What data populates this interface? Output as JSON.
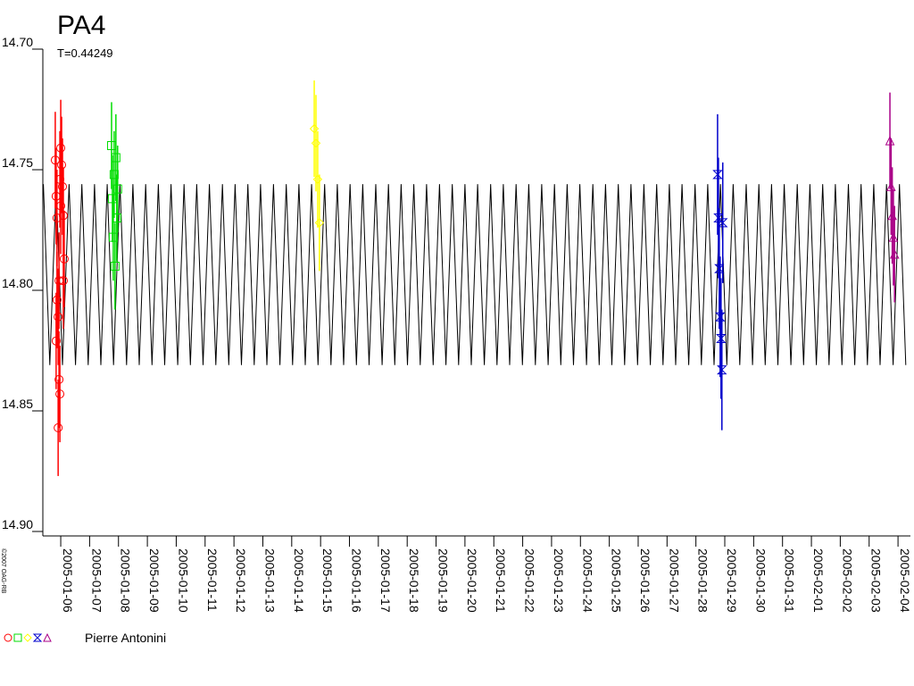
{
  "chart_data": {
    "type": "scatter",
    "title": "PA4",
    "subtitle": "T=0.44249",
    "credit": "©2007 OAG-RB",
    "legend_label": "Pierre Antonini",
    "xlim": [
      5.38,
      35.43
    ],
    "ylim": [
      14.7,
      14.9
    ],
    "y_inverted": true,
    "yticks": [
      {
        "value": 14.7,
        "label": "14.70"
      },
      14.75,
      {
        "value": 14.8,
        "label": "14.80"
      },
      14.85,
      {
        "value": 14.9,
        "label": "14.90"
      }
    ],
    "xticks": [
      {
        "value": 6,
        "label": "2005-01-06"
      },
      {
        "value": 7,
        "label": "2005-01-07"
      },
      {
        "value": 8,
        "label": "2005-01-08"
      },
      {
        "value": 9,
        "label": "2005-01-09"
      },
      {
        "value": 10,
        "label": "2005-01-10"
      },
      {
        "value": 11,
        "label": "2005-01-11"
      },
      {
        "value": 12,
        "label": "2005-01-12"
      },
      {
        "value": 13,
        "label": "2005-01-13"
      },
      {
        "value": 14,
        "label": "2005-01-14"
      },
      {
        "value": 15,
        "label": "2005-01-15"
      },
      {
        "value": 16,
        "label": "2005-01-16"
      },
      {
        "value": 17,
        "label": "2005-01-17"
      },
      {
        "value": 18,
        "label": "2005-01-18"
      },
      {
        "value": 19,
        "label": "2005-01-19"
      },
      {
        "value": 20,
        "label": "2005-01-20"
      },
      {
        "value": 21,
        "label": "2005-01-21"
      },
      {
        "value": 22,
        "label": "2005-01-22"
      },
      {
        "value": 23,
        "label": "2005-01-23"
      },
      {
        "value": 24,
        "label": "2005-01-24"
      },
      {
        "value": 25,
        "label": "2005-01-25"
      },
      {
        "value": 26,
        "label": "2005-01-26"
      },
      {
        "value": 27,
        "label": "2005-01-27"
      },
      {
        "value": 28,
        "label": "2005-01-28"
      },
      {
        "value": 29,
        "label": "2005-01-29"
      },
      {
        "value": 30,
        "label": "2005-01-30"
      },
      {
        "value": 31,
        "label": "2005-01-31"
      },
      {
        "value": 32,
        "label": "2005-02-01"
      },
      {
        "value": 33,
        "label": "2005-02-02"
      },
      {
        "value": 34,
        "label": "2005-02-03"
      },
      {
        "value": 35,
        "label": "2005-02-04"
      }
    ],
    "model": {
      "color": "#000000",
      "x": [
        5.4,
        5.62,
        5.84,
        6.06,
        6.29,
        6.51,
        6.73,
        6.95,
        7.17,
        7.39,
        7.61,
        7.83,
        8.05,
        8.28,
        8.5,
        8.72,
        8.94,
        9.16,
        9.38,
        9.6,
        9.82,
        10.05,
        10.27,
        10.49,
        10.71,
        10.93,
        11.15,
        11.37,
        11.6,
        11.82,
        12.04,
        12.26,
        12.48,
        12.7,
        12.92,
        13.14,
        13.37,
        13.59,
        13.81,
        14.03,
        14.25,
        14.47,
        14.69,
        14.91,
        15.14,
        15.36,
        15.58,
        15.8,
        16.02,
        16.24,
        16.46,
        16.68,
        16.91,
        17.13,
        17.35,
        17.57,
        17.79,
        18.01,
        18.23,
        18.45,
        18.67,
        18.9,
        19.12,
        19.34,
        19.56,
        19.78,
        20.0,
        20.22,
        20.44,
        20.67,
        20.89,
        21.11,
        21.33,
        21.55,
        21.77,
        21.99,
        22.21,
        22.44,
        22.66,
        22.88,
        23.1,
        23.32,
        23.54,
        23.76,
        23.98,
        24.21,
        24.43,
        24.65,
        24.87,
        25.09,
        25.31,
        25.53,
        25.75,
        25.98,
        26.2,
        26.42,
        26.64,
        26.86,
        27.08,
        27.3,
        27.52,
        27.75,
        27.97,
        28.19,
        28.41,
        28.63,
        28.85,
        29.07,
        29.29,
        29.52,
        29.74,
        29.96,
        30.18,
        30.4,
        30.62,
        30.84,
        31.06,
        31.29,
        31.51,
        31.73,
        31.95,
        32.17,
        32.39,
        32.61,
        32.83,
        33.06,
        33.28,
        33.5,
        33.72,
        33.94,
        34.16,
        34.38,
        34.6,
        34.83,
        35.05,
        35.27
      ],
      "values": [
        14.756,
        14.831,
        14.756,
        14.831,
        14.756,
        14.831,
        14.756,
        14.831,
        14.756,
        14.831,
        14.756,
        14.831,
        14.756,
        14.831,
        14.756,
        14.831,
        14.756,
        14.831,
        14.756,
        14.831,
        14.756,
        14.831,
        14.756,
        14.831,
        14.756,
        14.831,
        14.756,
        14.831,
        14.756,
        14.831,
        14.756,
        14.831,
        14.756,
        14.831,
        14.756,
        14.831,
        14.756,
        14.831,
        14.756,
        14.831,
        14.756,
        14.831,
        14.756,
        14.831,
        14.756,
        14.831,
        14.756,
        14.831,
        14.756,
        14.831,
        14.756,
        14.831,
        14.756,
        14.831,
        14.756,
        14.831,
        14.756,
        14.831,
        14.756,
        14.831,
        14.756,
        14.831,
        14.756,
        14.831,
        14.756,
        14.831,
        14.756,
        14.831,
        14.756,
        14.831,
        14.756,
        14.831,
        14.756,
        14.831,
        14.756,
        14.831,
        14.756,
        14.831,
        14.756,
        14.831,
        14.756,
        14.831,
        14.756,
        14.831,
        14.756,
        14.831,
        14.756,
        14.831,
        14.756,
        14.831,
        14.756,
        14.831,
        14.756,
        14.831,
        14.756,
        14.831,
        14.756,
        14.831,
        14.756,
        14.831,
        14.756,
        14.831,
        14.756,
        14.831,
        14.756,
        14.831,
        14.756,
        14.831,
        14.756,
        14.831,
        14.756,
        14.831,
        14.756,
        14.831,
        14.756,
        14.831,
        14.756,
        14.831,
        14.756,
        14.831,
        14.756,
        14.831,
        14.756,
        14.831,
        14.756,
        14.831,
        14.756,
        14.831,
        14.756,
        14.831,
        14.756,
        14.831,
        14.756,
        14.831,
        14.756,
        14.831
      ]
    },
    "series": [
      {
        "color": "#ff0000",
        "marker": "circle",
        "x": [
          5.81,
          5.84,
          5.84,
          5.87,
          5.87,
          5.91,
          5.91,
          5.94,
          5.94,
          5.97,
          5.97,
          6.0,
          6.0,
          6.03,
          6.06,
          6.09,
          6.09,
          6.12
        ],
        "values": [
          14.746,
          14.761,
          14.821,
          14.77,
          14.804,
          14.811,
          14.857,
          14.837,
          14.796,
          14.843,
          14.754,
          14.765,
          14.741,
          14.748,
          14.757,
          14.769,
          14.796,
          14.787
        ],
        "errors": [
          0.02,
          0.02,
          0.02,
          0.02,
          0.02,
          0.02,
          0.02,
          0.02,
          0.02,
          0.02,
          0.02,
          0.02,
          0.02,
          0.02,
          0.02,
          0.02,
          0.02,
          0.02
        ]
      },
      {
        "color": "#00dd00",
        "marker": "square",
        "x": [
          7.76,
          7.79,
          7.82,
          7.85,
          7.88,
          7.91,
          7.94,
          7.97
        ],
        "values": [
          14.74,
          14.762,
          14.778,
          14.752,
          14.79,
          14.745,
          14.77,
          14.758
        ],
        "errors": [
          0.018,
          0.018,
          0.018,
          0.018,
          0.018,
          0.018,
          0.018,
          0.018
        ]
      },
      {
        "color": "#ffff00",
        "marker": "diamond",
        "x": [
          14.78,
          14.84,
          14.9,
          14.96
        ],
        "values": [
          14.733,
          14.739,
          14.754,
          14.772
        ],
        "errors": [
          0.02,
          0.02,
          0.02,
          0.02
        ]
      },
      {
        "color": "#0000cc",
        "marker": "hourglass",
        "x": [
          28.75,
          28.78,
          28.81,
          28.84,
          28.87,
          28.9,
          28.93
        ],
        "values": [
          14.752,
          14.77,
          14.791,
          14.811,
          14.82,
          14.833,
          14.772
        ],
        "errors": [
          0.025,
          0.025,
          0.025,
          0.025,
          0.025,
          0.025,
          0.025
        ]
      },
      {
        "color": "#aa0088",
        "marker": "triangle",
        "x": [
          34.72,
          34.76,
          34.8,
          34.84,
          34.88
        ],
        "values": [
          14.738,
          14.757,
          14.769,
          14.778,
          14.785
        ],
        "errors": [
          0.02,
          0.02,
          0.02,
          0.02,
          0.02
        ]
      }
    ]
  }
}
